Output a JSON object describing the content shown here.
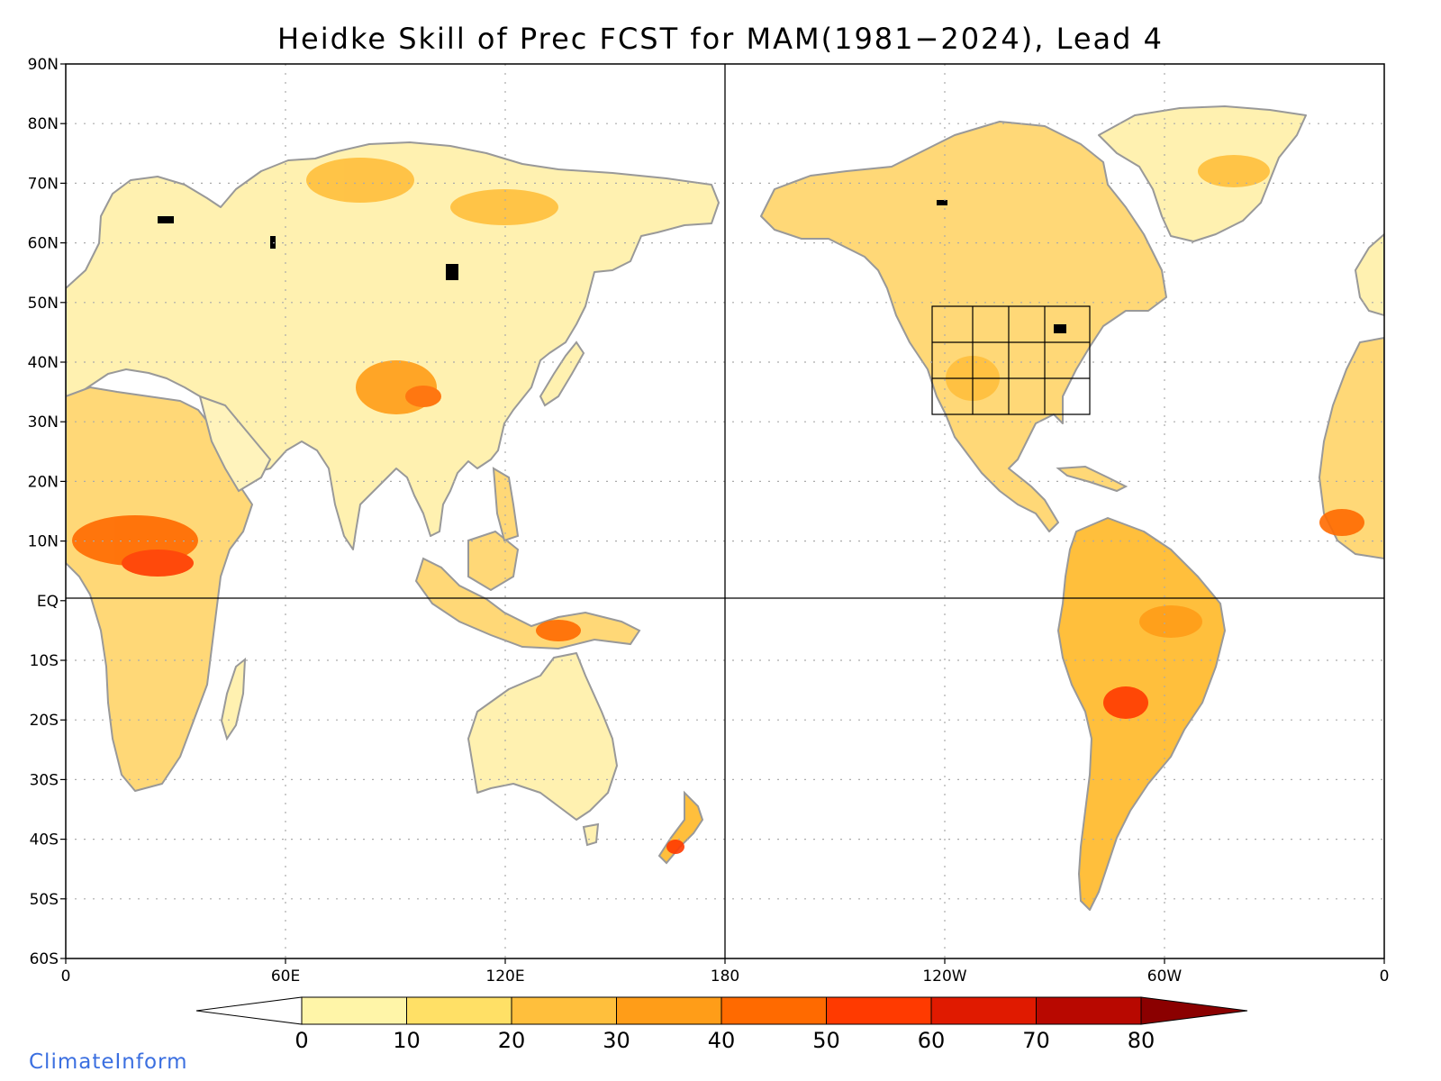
{
  "title": "Heidke Skill of Prec FCST for MAM(1981−2024), Lead 4",
  "credit": "ClimateInform",
  "map": {
    "projection": "equirectangular",
    "lon_range": [
      0,
      360
    ],
    "lat_range": [
      -60,
      90
    ],
    "lat_ticks": [
      {
        "value": 90,
        "label": "90N"
      },
      {
        "value": 80,
        "label": "80N"
      },
      {
        "value": 70,
        "label": "70N"
      },
      {
        "value": 60,
        "label": "60N"
      },
      {
        "value": 50,
        "label": "50N"
      },
      {
        "value": 40,
        "label": "40N"
      },
      {
        "value": 30,
        "label": "30N"
      },
      {
        "value": 20,
        "label": "20N"
      },
      {
        "value": 10,
        "label": "10N"
      },
      {
        "value": 0,
        "label": "EQ"
      },
      {
        "value": -10,
        "label": "10S"
      },
      {
        "value": -20,
        "label": "20S"
      },
      {
        "value": -30,
        "label": "30S"
      },
      {
        "value": -40,
        "label": "40S"
      },
      {
        "value": -50,
        "label": "50S"
      },
      {
        "value": -60,
        "label": "60S"
      }
    ],
    "lon_ticks": [
      {
        "value": 0,
        "label": "0"
      },
      {
        "value": 60,
        "label": "60E"
      },
      {
        "value": 120,
        "label": "120E"
      },
      {
        "value": 180,
        "label": "180"
      },
      {
        "value": 240,
        "label": "120W"
      },
      {
        "value": 300,
        "label": "60W"
      },
      {
        "value": 360,
        "label": "0"
      }
    ],
    "grid": "dotted",
    "reference_lines": [
      "equator",
      "180"
    ],
    "land_color": "#ffffff",
    "coast_color": "#999999",
    "lake_color": "#000000"
  },
  "colorbar": {
    "labels": [
      "0",
      "10",
      "20",
      "30",
      "40",
      "50",
      "60",
      "70",
      "80"
    ],
    "below_color": "#ffffff",
    "bins": [
      {
        "range": [
          0,
          10
        ],
        "color": "#fff5a8"
      },
      {
        "range": [
          10,
          20
        ],
        "color": "#ffe066"
      },
      {
        "range": [
          20,
          30
        ],
        "color": "#ffbf3c"
      },
      {
        "range": [
          30,
          40
        ],
        "color": "#ff9d18"
      },
      {
        "range": [
          40,
          50
        ],
        "color": "#ff6a00"
      },
      {
        "range": [
          50,
          60
        ],
        "color": "#ff3a00"
      },
      {
        "range": [
          60,
          70
        ],
        "color": "#e01a00"
      },
      {
        "range": [
          70,
          80
        ],
        "color": "#b80800"
      }
    ],
    "above_color": "#8b0000"
  }
}
